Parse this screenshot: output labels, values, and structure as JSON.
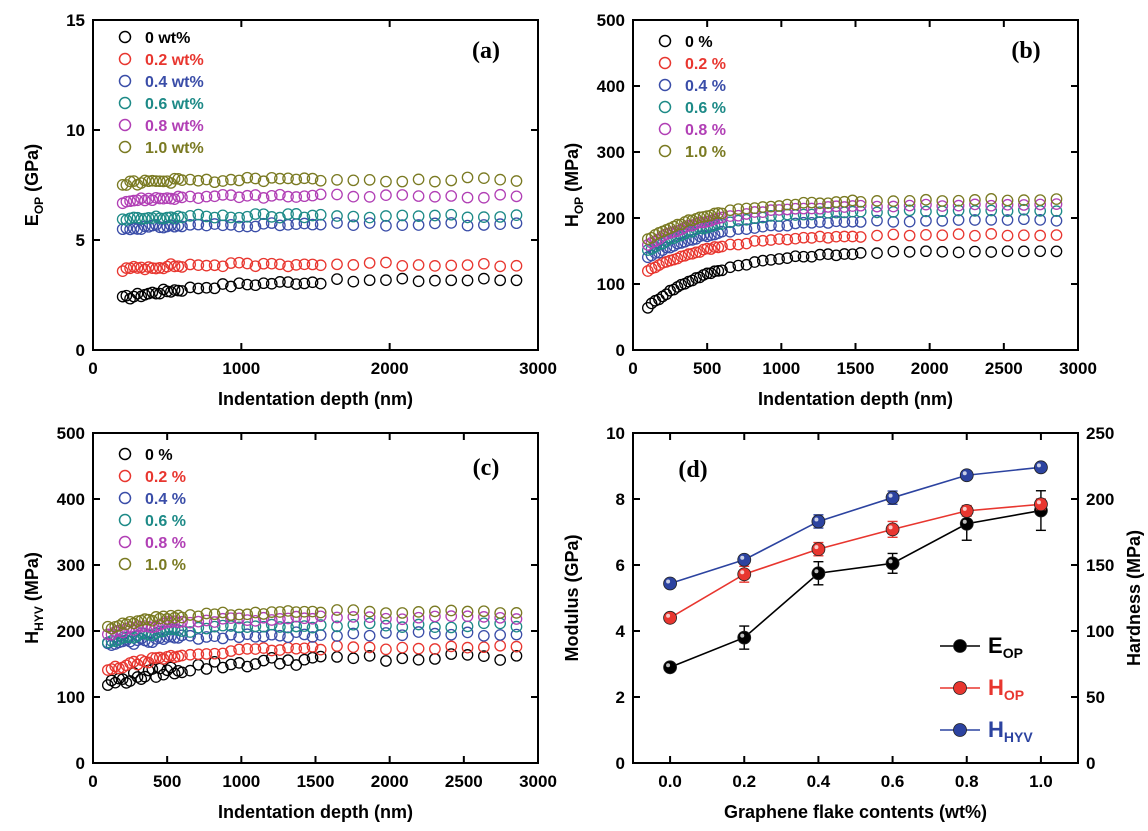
{
  "chart_data": [
    {
      "type": "scatter",
      "panel_label": "(a)",
      "xlabel": "Indentation depth (nm)",
      "ylabel": "E",
      "ylabel_sub": "OP",
      "ylabel_unit": " (GPa)",
      "xlim": [
        0,
        3000
      ],
      "ylim": [
        0,
        15
      ],
      "xticks": [
        0,
        1000,
        2000,
        3000
      ],
      "yticks": [
        0,
        5,
        10,
        15
      ],
      "x_range": [
        200,
        2870
      ],
      "legend_position": "top-left",
      "series": [
        {
          "name": "0 wt%",
          "color": "#000000",
          "plateau": 3.2,
          "start": 2.35,
          "k": 600,
          "noise": 0.1
        },
        {
          "name": "0.2 wt%",
          "color": "#e8362f",
          "plateau": 3.9,
          "start": 3.65,
          "k": 300,
          "noise": 0.1
        },
        {
          "name": "0.4 wt%",
          "color": "#3a4da8",
          "plateau": 5.7,
          "start": 5.5,
          "k": 300,
          "noise": 0.08
        },
        {
          "name": "0.6 wt%",
          "color": "#1d8a87",
          "plateau": 6.1,
          "start": 5.9,
          "k": 300,
          "noise": 0.1
        },
        {
          "name": "0.8 wt%",
          "color": "#b13fb5",
          "plateau": 7.0,
          "start": 6.75,
          "k": 300,
          "noise": 0.08
        },
        {
          "name": "1.0 wt%",
          "color": "#7a7a22",
          "plateau": 7.75,
          "start": 7.55,
          "k": 300,
          "noise": 0.1
        }
      ]
    },
    {
      "type": "scatter",
      "panel_label": "(b)",
      "xlabel": "Indentation depth (nm)",
      "ylabel": "H",
      "ylabel_sub": "OP",
      "ylabel_unit": " (MPa)",
      "xlim": [
        0,
        3000
      ],
      "ylim": [
        0,
        500
      ],
      "xticks": [
        0,
        500,
        1000,
        1500,
        2000,
        2500,
        3000
      ],
      "yticks": [
        0,
        100,
        200,
        300,
        400,
        500
      ],
      "x_range": [
        100,
        2870
      ],
      "legend_position": "top-left",
      "series": [
        {
          "name": "0 %",
          "color": "#000000",
          "plateau": 150,
          "start": 65,
          "k": 450,
          "noise": 1.5
        },
        {
          "name": "0.2 %",
          "color": "#e8362f",
          "plateau": 175,
          "start": 120,
          "k": 450,
          "noise": 1.5
        },
        {
          "name": "0.4 %",
          "color": "#3a4da8",
          "plateau": 197,
          "start": 140,
          "k": 450,
          "noise": 1.5
        },
        {
          "name": "0.6 %",
          "color": "#1d8a87",
          "plateau": 212,
          "start": 150,
          "k": 450,
          "noise": 1.5
        },
        {
          "name": "0.8 %",
          "color": "#b13fb5",
          "plateau": 220,
          "start": 160,
          "k": 450,
          "noise": 1.5
        },
        {
          "name": "1.0 %",
          "color": "#7a7a22",
          "plateau": 228,
          "start": 168,
          "k": 450,
          "noise": 1.5
        }
      ]
    },
    {
      "type": "scatter",
      "panel_label": "(c)",
      "xlabel": "Indentation depth (nm)",
      "ylabel": "H",
      "ylabel_sub": "HYV",
      "ylabel_unit": " (MPa)",
      "xlim": [
        0,
        3000
      ],
      "ylim": [
        0,
        500
      ],
      "xticks": [
        0,
        500,
        1000,
        1500,
        2000,
        2500,
        3000
      ],
      "yticks": [
        0,
        100,
        200,
        300,
        400,
        500
      ],
      "x_range": [
        100,
        2870
      ],
      "legend_position": "top-left",
      "series": [
        {
          "name": "0 %",
          "color": "#000000",
          "plateau": 160,
          "start": 120,
          "k": 600,
          "noise": 7
        },
        {
          "name": "0.2 %",
          "color": "#e8362f",
          "plateau": 176,
          "start": 140,
          "k": 500,
          "noise": 3
        },
        {
          "name": "0.4 %",
          "color": "#3a4da8",
          "plateau": 195,
          "start": 178,
          "k": 400,
          "noise": 4
        },
        {
          "name": "0.6 %",
          "color": "#1d8a87",
          "plateau": 208,
          "start": 185,
          "k": 400,
          "noise": 4
        },
        {
          "name": "0.8 %",
          "color": "#b13fb5",
          "plateau": 220,
          "start": 195,
          "k": 400,
          "noise": 3
        },
        {
          "name": "1.0 %",
          "color": "#7a7a22",
          "plateau": 230,
          "start": 205,
          "k": 400,
          "noise": 3
        }
      ]
    },
    {
      "type": "line",
      "panel_label": "(d)",
      "xlabel": "Graphene flake contents (wt%)",
      "ylabel": "Modulus (GPa)",
      "ylabel_right": "Hardness (MPa)",
      "xlim": [
        -0.1,
        1.1
      ],
      "ylim": [
        0,
        10
      ],
      "ylim_right": [
        0,
        250
      ],
      "xticks": [
        0.0,
        0.2,
        0.4,
        0.6,
        0.8,
        1.0
      ],
      "yticks": [
        0,
        2,
        4,
        6,
        8,
        10
      ],
      "yticks_right": [
        0,
        50,
        100,
        150,
        200,
        250
      ],
      "x": [
        0.0,
        0.2,
        0.4,
        0.6,
        0.8,
        1.0
      ],
      "legend_position": "bottom-right",
      "series": [
        {
          "name": "E",
          "name_sub": "OP",
          "axis": "left",
          "color": "#000000",
          "name_color": "#000000",
          "values": [
            2.9,
            3.8,
            5.75,
            6.05,
            7.25,
            7.65
          ],
          "errors": [
            0.08,
            0.35,
            0.35,
            0.3,
            0.5,
            0.6
          ]
        },
        {
          "name": "H",
          "name_sub": "OP",
          "axis": "right",
          "color": "#e8362f",
          "name_color": "#e8362f",
          "values": [
            110,
            143,
            162,
            177,
            191,
            196
          ],
          "errors": [
            3,
            6,
            5,
            6,
            4,
            4
          ]
        },
        {
          "name": "H",
          "name_sub": "HYV",
          "axis": "right",
          "color": "#2c43a0",
          "name_color": "#2c43a0",
          "values": [
            136,
            154,
            183,
            201,
            218,
            224
          ],
          "errors": [
            3,
            3,
            5,
            5,
            3,
            3
          ]
        }
      ]
    }
  ]
}
